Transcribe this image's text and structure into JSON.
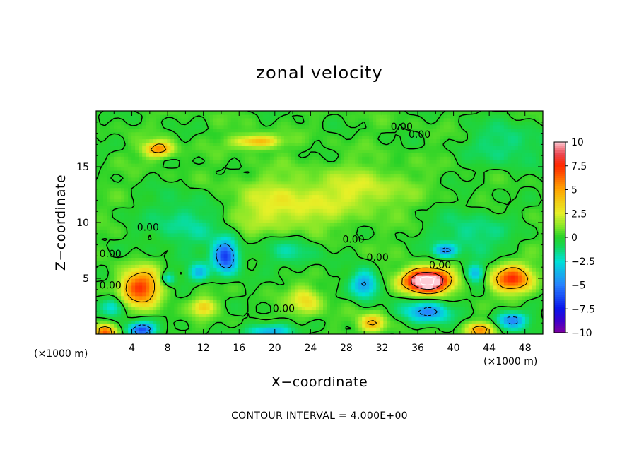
{
  "chart_data": {
    "type": "heatmap",
    "title": "zonal velocity",
    "xlabel": "X−coordinate",
    "ylabel": "Z−coordinate",
    "x_unit_label": "(×1000 m)",
    "z_unit_label": "(×1000 m)",
    "footer": "CONTOUR INTERVAL = 4.000E+00",
    "xlim": [
      0,
      50
    ],
    "ylim": [
      0,
      20
    ],
    "clim": [
      -10,
      10
    ],
    "x_ticks": [
      4,
      8,
      12,
      16,
      20,
      24,
      28,
      32,
      36,
      40,
      44,
      48
    ],
    "x_tick_labels": [
      "4",
      "8",
      "12",
      "16",
      "20",
      "24",
      "28",
      "32",
      "36",
      "40",
      "44",
      "48"
    ],
    "y_ticks": [
      5,
      10,
      15
    ],
    "y_tick_labels": [
      "5",
      "10",
      "15"
    ],
    "colorbar_ticks": [
      10,
      7.5,
      5,
      2.5,
      0,
      -2.5,
      -5,
      -7.5,
      -10
    ],
    "colorbar_labels": [
      "10",
      "7.5",
      "5",
      "2.5",
      "0",
      "−2.5",
      "−5",
      "−7.5",
      "−10"
    ],
    "contour_labels": [
      {
        "text": "0.00",
        "x": 34.2,
        "y": 18.6
      },
      {
        "text": "0.00",
        "x": 36.2,
        "y": 17.9
      },
      {
        "text": "0.00",
        "x": 5.8,
        "y": 9.6
      },
      {
        "text": "0.00",
        "x": 1.6,
        "y": 7.2
      },
      {
        "text": "0.00",
        "x": 1.6,
        "y": 4.4
      },
      {
        "text": "0.00",
        "x": 28.8,
        "y": 8.5
      },
      {
        "text": "0.00",
        "x": 31.5,
        "y": 6.9
      },
      {
        "text": "0.00",
        "x": 38.5,
        "y": 6.2
      },
      {
        "text": "0.00",
        "x": 21.0,
        "y": 2.3
      }
    ],
    "features": [
      {
        "x": 5.0,
        "y": 4.2,
        "sx": 2.2,
        "sy": 1.6,
        "amp": 7.0
      },
      {
        "x": 7.0,
        "y": 16.6,
        "sx": 1.6,
        "sy": 0.7,
        "amp": 5.5
      },
      {
        "x": 18.0,
        "y": 17.3,
        "sx": 2.5,
        "sy": 0.6,
        "amp": 4.5
      },
      {
        "x": 37.0,
        "y": 4.8,
        "sx": 2.5,
        "sy": 1.0,
        "amp": 14.0
      },
      {
        "x": 46.5,
        "y": 5.0,
        "sx": 2.2,
        "sy": 1.2,
        "amp": 7.0
      },
      {
        "x": 1.0,
        "y": 0.2,
        "sx": 1.2,
        "sy": 0.6,
        "amp": 6.0
      },
      {
        "x": 43.0,
        "y": 0.4,
        "sx": 1.5,
        "sy": 0.7,
        "amp": 5.5
      },
      {
        "x": 31.0,
        "y": 1.0,
        "sx": 1.4,
        "sy": 0.8,
        "amp": 4.5
      },
      {
        "x": 12.0,
        "y": 2.5,
        "sx": 1.3,
        "sy": 0.8,
        "amp": 3.5
      },
      {
        "x": 23.5,
        "y": 3.0,
        "sx": 1.8,
        "sy": 1.3,
        "amp": 3.0
      },
      {
        "x": 14.5,
        "y": 7.0,
        "sx": 1.4,
        "sy": 1.5,
        "amp": -7.0
      },
      {
        "x": 5.0,
        "y": 0.4,
        "sx": 1.5,
        "sy": 0.7,
        "amp": -6.5
      },
      {
        "x": 30.0,
        "y": 4.5,
        "sx": 1.5,
        "sy": 1.2,
        "amp": -5.0
      },
      {
        "x": 37.0,
        "y": 2.0,
        "sx": 2.5,
        "sy": 1.0,
        "amp": -5.0
      },
      {
        "x": 46.5,
        "y": 1.3,
        "sx": 1.8,
        "sy": 0.8,
        "amp": -5.0
      },
      {
        "x": 19.5,
        "y": 0.3,
        "sx": 2.5,
        "sy": 0.6,
        "amp": -4.5
      },
      {
        "x": 11.5,
        "y": 5.5,
        "sx": 1.2,
        "sy": 0.8,
        "amp": -3.5
      },
      {
        "x": 39.0,
        "y": 7.5,
        "sx": 1.3,
        "sy": 0.6,
        "amp": -4.0
      },
      {
        "x": 42.5,
        "y": 5.5,
        "sx": 1.0,
        "sy": 0.8,
        "amp": -4.0
      },
      {
        "x": 8.0,
        "y": 5.0,
        "sx": 0.8,
        "sy": 0.6,
        "amp": -3.5
      },
      {
        "x": 2.0,
        "y": 2.5,
        "sx": 1.3,
        "sy": 0.9,
        "amp": -3.0
      },
      {
        "x": 21.0,
        "y": 11.5,
        "sx": 6.0,
        "sy": 2.5,
        "amp": 2.5
      },
      {
        "x": 30.0,
        "y": 13.0,
        "sx": 5.0,
        "sy": 2.0,
        "amp": 2.0
      },
      {
        "x": 10.0,
        "y": 10.0,
        "sx": 4.0,
        "sy": 2.5,
        "amp": -2.0
      },
      {
        "x": 42.0,
        "y": 9.0,
        "sx": 4.0,
        "sy": 2.0,
        "amp": -2.0
      },
      {
        "x": 46.0,
        "y": 17.0,
        "sx": 4.0,
        "sy": 2.0,
        "amp": -1.8
      },
      {
        "x": 22.0,
        "y": 7.5,
        "sx": 3.0,
        "sy": 1.5,
        "amp": -2.0
      }
    ]
  }
}
